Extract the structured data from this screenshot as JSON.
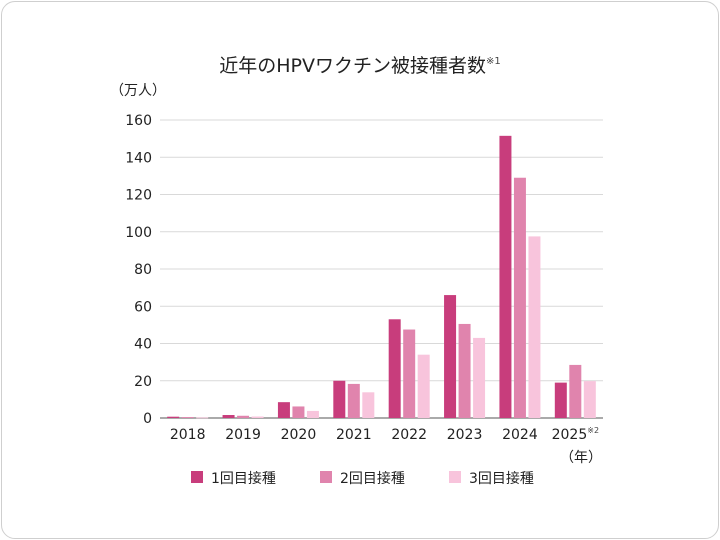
{
  "chart_data": {
    "type": "bar",
    "title": "近年のHPVワクチン被接種者数",
    "title_note": "※1",
    "ylabel": "（万人）",
    "xlabel": "（年）",
    "ylim": [
      0,
      160
    ],
    "yticks": [
      0,
      20,
      40,
      60,
      80,
      100,
      120,
      140,
      160
    ],
    "grid": true,
    "legend_position": "bottom",
    "categories": [
      "2018",
      "2019",
      "2020",
      "2021",
      "2022",
      "2023",
      "2024",
      "2025"
    ],
    "category_notes": [
      "",
      "",
      "",
      "",
      "",
      "",
      "",
      "※2"
    ],
    "series": [
      {
        "name": "1回目接種",
        "color": "#c83d7c",
        "values": [
          0.7,
          1.6,
          8.5,
          20,
          53,
          66,
          151.5,
          19
        ]
      },
      {
        "name": "2回目接種",
        "color": "#e084ad",
        "values": [
          0.5,
          1.2,
          6.2,
          18.3,
          47.5,
          50.5,
          129,
          28.5
        ]
      },
      {
        "name": "3回目接種",
        "color": "#f8c4dc",
        "values": [
          0.3,
          0.8,
          3.8,
          13.8,
          34,
          43,
          97.5,
          19.8
        ]
      }
    ]
  }
}
